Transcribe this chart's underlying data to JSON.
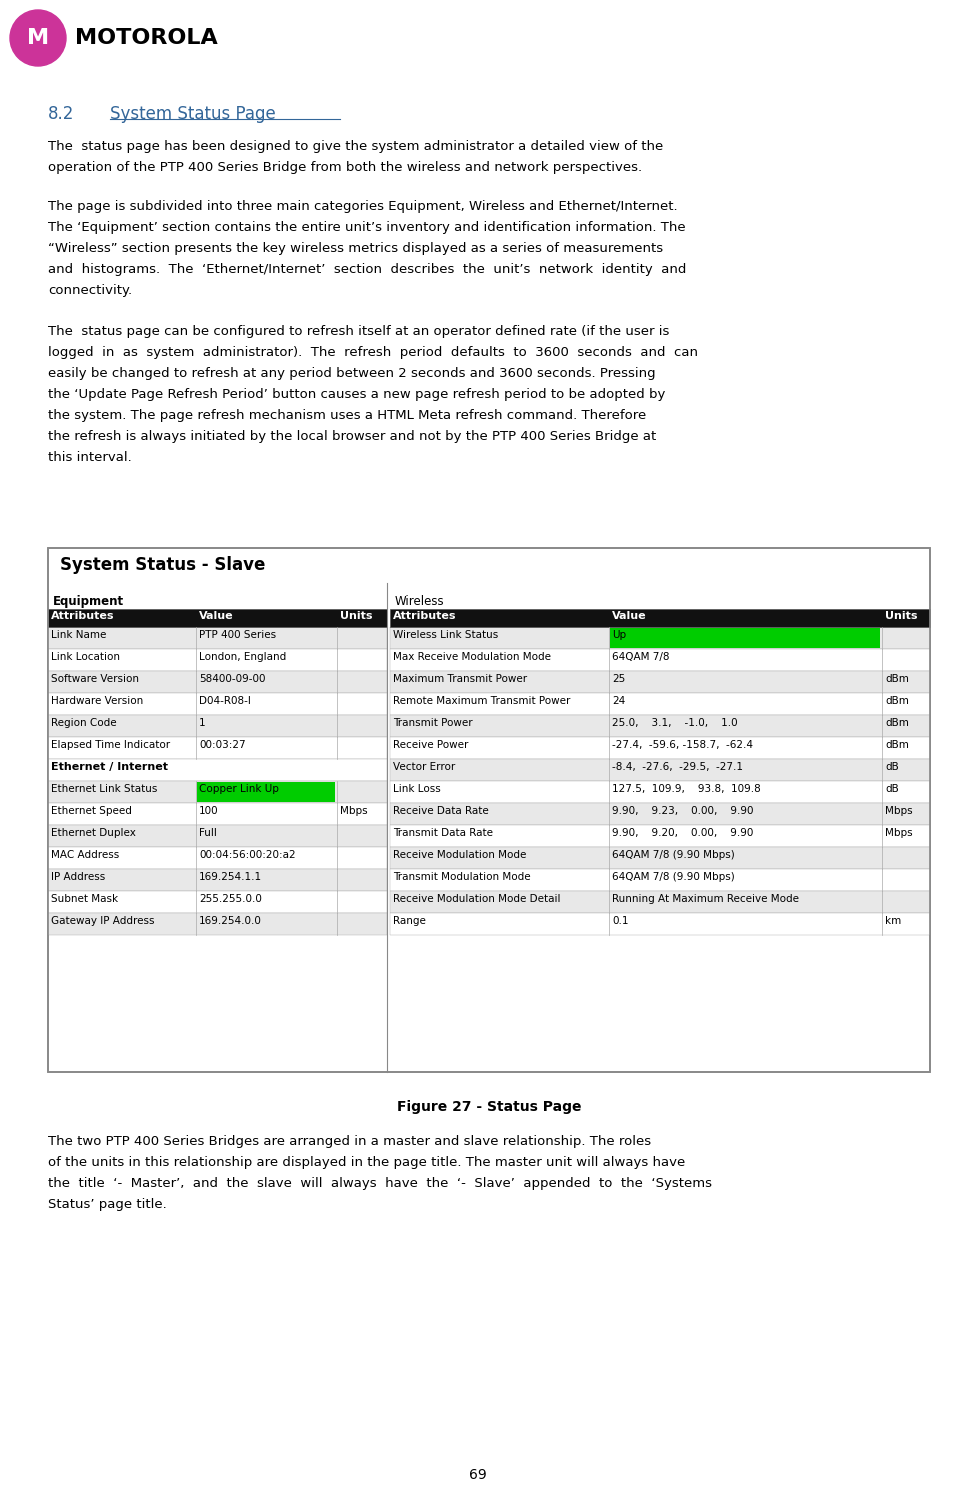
{
  "page_number": "69",
  "section_number": "8.2",
  "section_title": "System Status Page",
  "figure_title": "Figure 27 - Status Page",
  "table_title": "System Status - Slave",
  "left_section_header": "Equipment",
  "right_section_header": "Wireless",
  "ethernet_header": "Ethernet / Internet",
  "left_rows": [
    [
      "Link Name",
      "PTP 400 Series",
      ""
    ],
    [
      "Link Location",
      "London, England",
      ""
    ],
    [
      "Software Version",
      "58400-09-00",
      ""
    ],
    [
      "Hardware Version",
      "D04-R08-I",
      ""
    ],
    [
      "Region Code",
      "1",
      ""
    ],
    [
      "Elapsed Time Indicator",
      "00:03:27",
      ""
    ]
  ],
  "ethernet_rows": [
    [
      "Ethernet Link Status",
      "Copper Link Up",
      "",
      "green"
    ],
    [
      "Ethernet Speed",
      "100",
      "Mbps",
      ""
    ],
    [
      "Ethernet Duplex",
      "Full",
      "",
      ""
    ],
    [
      "MAC Address",
      "00:04:56:00:20:a2",
      "",
      ""
    ],
    [
      "IP Address",
      "169.254.1.1",
      "",
      ""
    ],
    [
      "Subnet Mask",
      "255.255.0.0",
      "",
      ""
    ],
    [
      "Gateway IP Address",
      "169.254.0.0",
      "",
      ""
    ]
  ],
  "right_rows": [
    [
      "Wireless Link Status",
      "Up",
      "",
      "green"
    ],
    [
      "Max Receive Modulation Mode",
      "64QAM 7/8",
      "",
      ""
    ],
    [
      "Maximum Transmit Power",
      "25",
      "dBm",
      ""
    ],
    [
      "Remote Maximum Transmit Power",
      "24",
      "dBm",
      ""
    ],
    [
      "Transmit Power",
      "25.0,    3.1,    -1.0,    1.0",
      "dBm",
      ""
    ],
    [
      "Receive Power",
      "-27.4,  -59.6, -158.7,  -62.4",
      "dBm",
      ""
    ],
    [
      "Vector Error",
      "-8.4,  -27.6,  -29.5,  -27.1",
      "dB",
      ""
    ],
    [
      "Link Loss",
      "127.5,  109.9,    93.8,  109.8",
      "dB",
      ""
    ],
    [
      "Receive Data Rate",
      "9.90,    9.23,    0.00,    9.90",
      "Mbps",
      ""
    ],
    [
      "Transmit Data Rate",
      "9.90,    9.20,    0.00,    9.90",
      "Mbps",
      ""
    ],
    [
      "Receive Modulation Mode",
      "64QAM 7/8 (9.90 Mbps)",
      "",
      ""
    ],
    [
      "Transmit Modulation Mode",
      "64QAM 7/8 (9.90 Mbps)",
      "",
      ""
    ],
    [
      "Receive Modulation Mode Detail",
      "Running At Maximum Receive Mode",
      "",
      ""
    ],
    [
      "Range",
      "0.1",
      "km",
      ""
    ]
  ],
  "colors": {
    "background": "#ffffff",
    "table_border": "#888888",
    "header_bg": "#111111",
    "header_text": "#ffffff",
    "row_odd": "#e8e8e8",
    "row_even": "#ffffff",
    "green_cell": "#00cc00",
    "title_color": "#336699",
    "body_text_color": "#000000"
  }
}
